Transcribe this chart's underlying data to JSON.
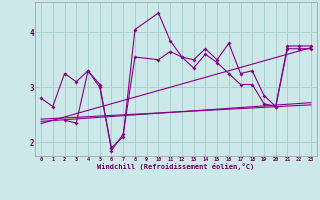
{
  "xlabel": "Windchill (Refroidissement éolien,°C)",
  "background_color": "#cce8e8",
  "grid_color": "#aacece",
  "line_color": "#880088",
  "tick_color": "#660066",
  "xlim": [
    -0.5,
    23.5
  ],
  "ylim": [
    1.75,
    4.55
  ],
  "yticks": [
    2,
    3,
    4
  ],
  "xticks": [
    0,
    1,
    2,
    3,
    4,
    5,
    6,
    7,
    8,
    9,
    10,
    11,
    12,
    13,
    14,
    15,
    16,
    17,
    18,
    19,
    20,
    21,
    22,
    23
  ],
  "series1_x": [
    0,
    1,
    2,
    3,
    4,
    5,
    6,
    7,
    8,
    10,
    11,
    12,
    13,
    14,
    15,
    16,
    17,
    18,
    19,
    20,
    21,
    22,
    23
  ],
  "series1_y": [
    2.8,
    2.65,
    3.25,
    3.1,
    3.3,
    3.05,
    1.85,
    2.15,
    3.55,
    3.5,
    3.65,
    3.55,
    3.35,
    3.6,
    3.45,
    3.25,
    3.05,
    3.05,
    2.7,
    2.65,
    3.7,
    3.7,
    3.7
  ],
  "series2_x": [
    2,
    3,
    4,
    5,
    6,
    7,
    8,
    10,
    11,
    12,
    13,
    14,
    15,
    16,
    17,
    18,
    19,
    20,
    21,
    22,
    23
  ],
  "series2_y": [
    2.4,
    2.35,
    3.3,
    3.0,
    1.9,
    2.1,
    4.05,
    4.35,
    3.85,
    3.55,
    3.5,
    3.7,
    3.5,
    3.8,
    3.25,
    3.3,
    2.85,
    2.65,
    3.75,
    3.75,
    3.75
  ],
  "trend1_x": [
    0,
    23
  ],
  "trend1_y": [
    2.42,
    2.68
  ],
  "trend2_x": [
    0,
    23
  ],
  "trend2_y": [
    2.38,
    2.72
  ],
  "trend3_x": [
    0,
    23
  ],
  "trend3_y": [
    2.34,
    3.72
  ]
}
